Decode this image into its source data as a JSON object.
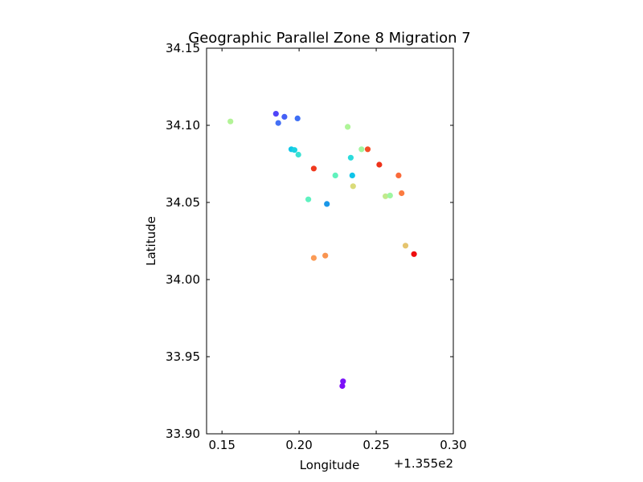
{
  "chart_data": {
    "type": "scatter",
    "title": "Geographic Parallel Zone 8 Migration 7",
    "xlabel": "Longitude",
    "ylabel": "Latitude",
    "x_offset_text": "+1.355e2",
    "xlim": [
      0.14,
      0.3
    ],
    "ylim": [
      33.9,
      34.15
    ],
    "xticks": [
      0.15,
      0.2,
      0.25,
      0.3
    ],
    "xtick_labels": [
      "0.15",
      "0.20",
      "0.25",
      "0.30"
    ],
    "yticks": [
      33.9,
      33.95,
      34.0,
      34.05,
      34.1,
      34.15
    ],
    "ytick_labels": [
      "33.90",
      "33.95",
      "34.00",
      "34.05",
      "34.10",
      "34.15"
    ],
    "grid": false,
    "legend": "none",
    "points": [
      {
        "x": 0.1555,
        "y": 34.1025,
        "color": "#b2f396"
      },
      {
        "x": 0.185,
        "y": 34.1075,
        "color": "#4f44f9"
      },
      {
        "x": 0.1865,
        "y": 34.1015,
        "color": "#4470f5"
      },
      {
        "x": 0.1905,
        "y": 34.1055,
        "color": "#4560f6"
      },
      {
        "x": 0.199,
        "y": 34.1045,
        "color": "#3e6ff5"
      },
      {
        "x": 0.195,
        "y": 34.0845,
        "color": "#10c7e8"
      },
      {
        "x": 0.197,
        "y": 34.084,
        "color": "#1ad2e1"
      },
      {
        "x": 0.1995,
        "y": 34.081,
        "color": "#3be1d3"
      },
      {
        "x": 0.2095,
        "y": 34.072,
        "color": "#f0391d"
      },
      {
        "x": 0.2235,
        "y": 34.0675,
        "color": "#60f2bd"
      },
      {
        "x": 0.206,
        "y": 34.052,
        "color": "#5ef1c0"
      },
      {
        "x": 0.218,
        "y": 34.049,
        "color": "#1997e8"
      },
      {
        "x": 0.2315,
        "y": 34.099,
        "color": "#aef598"
      },
      {
        "x": 0.2405,
        "y": 34.0845,
        "color": "#a2f69f"
      },
      {
        "x": 0.2445,
        "y": 34.0845,
        "color": "#f34e26"
      },
      {
        "x": 0.2335,
        "y": 34.079,
        "color": "#2bdbdc"
      },
      {
        "x": 0.2345,
        "y": 34.0675,
        "color": "#0fc4e9"
      },
      {
        "x": 0.235,
        "y": 34.0605,
        "color": "#dadb79"
      },
      {
        "x": 0.252,
        "y": 34.0745,
        "color": "#ee321a"
      },
      {
        "x": 0.2645,
        "y": 34.0675,
        "color": "#fa6a3a"
      },
      {
        "x": 0.2665,
        "y": 34.056,
        "color": "#fb7b41"
      },
      {
        "x": 0.256,
        "y": 34.054,
        "color": "#c2e98c"
      },
      {
        "x": 0.259,
        "y": 34.0545,
        "color": "#9ef6a1"
      },
      {
        "x": 0.269,
        "y": 34.022,
        "color": "#e5c46e"
      },
      {
        "x": 0.2745,
        "y": 34.0165,
        "color": "#ee0d0e"
      },
      {
        "x": 0.2095,
        "y": 34.014,
        "color": "#fb9b56"
      },
      {
        "x": 0.217,
        "y": 34.0155,
        "color": "#f99450"
      },
      {
        "x": 0.2285,
        "y": 33.934,
        "color": "#7a13f8"
      },
      {
        "x": 0.228,
        "y": 33.931,
        "color": "#7e0cf8"
      }
    ]
  }
}
